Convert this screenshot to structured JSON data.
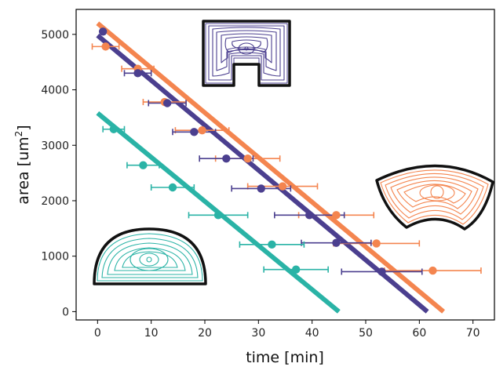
{
  "chart_data": {
    "type": "scatter",
    "xlabel": "time [min]",
    "ylabel_base": "area [um",
    "ylabel_sup": "2",
    "ylabel_end": "]",
    "xlim": [
      -4,
      74
    ],
    "ylim": [
      -150,
      5450
    ],
    "xticks": [
      0,
      10,
      20,
      30,
      40,
      50,
      60,
      70
    ],
    "yticks": [
      0,
      1000,
      2000,
      3000,
      4000,
      5000
    ],
    "grid": false,
    "legend": "none",
    "series": [
      {
        "color": "#f4854f",
        "fit_line": [
          [
            0,
            5200
          ],
          [
            64.5,
            0
          ]
        ],
        "points": [
          {
            "x": 1.5,
            "y": 4780,
            "xerr": 2.5
          },
          {
            "x": 7.5,
            "y": 4380,
            "xerr": 3.0
          },
          {
            "x": 12.5,
            "y": 3780,
            "xerr": 4.0
          },
          {
            "x": 19.5,
            "y": 3270,
            "xerr": 5.0
          },
          {
            "x": 28.0,
            "y": 2760,
            "xerr": 6.0
          },
          {
            "x": 34.5,
            "y": 2260,
            "xerr": 6.5
          },
          {
            "x": 44.5,
            "y": 1740,
            "xerr": 7.0
          },
          {
            "x": 52.0,
            "y": 1230,
            "xerr": 8.0
          },
          {
            "x": 62.5,
            "y": 740,
            "xerr": 9.0
          }
        ]
      },
      {
        "color": "#4b3f8f",
        "fit_line": [
          [
            0,
            4980
          ],
          [
            61.5,
            0
          ]
        ],
        "points": [
          {
            "x": 1.0,
            "y": 5050,
            "xerr": 0.4
          },
          {
            "x": 7.5,
            "y": 4300,
            "xerr": 2.5
          },
          {
            "x": 13.0,
            "y": 3760,
            "xerr": 3.5
          },
          {
            "x": 18.0,
            "y": 3240,
            "xerr": 4.0
          },
          {
            "x": 24.0,
            "y": 2760,
            "xerr": 5.0
          },
          {
            "x": 30.5,
            "y": 2220,
            "xerr": 5.5
          },
          {
            "x": 39.5,
            "y": 1740,
            "xerr": 6.5
          },
          {
            "x": 44.5,
            "y": 1240,
            "xerr": 6.5
          },
          {
            "x": 53.0,
            "y": 720,
            "xerr": 7.5
          }
        ]
      },
      {
        "color": "#2ab3a6",
        "fit_line": [
          [
            0,
            3580
          ],
          [
            45,
            0
          ]
        ],
        "points": [
          {
            "x": 3.0,
            "y": 3290,
            "xerr": 2.0
          },
          {
            "x": 8.5,
            "y": 2640,
            "xerr": 3.0
          },
          {
            "x": 14.0,
            "y": 2240,
            "xerr": 4.0
          },
          {
            "x": 22.5,
            "y": 1740,
            "xerr": 5.5
          },
          {
            "x": 32.5,
            "y": 1210,
            "xerr": 6.0
          },
          {
            "x": 37.0,
            "y": 760,
            "xerr": 6.0
          }
        ]
      }
    ]
  }
}
